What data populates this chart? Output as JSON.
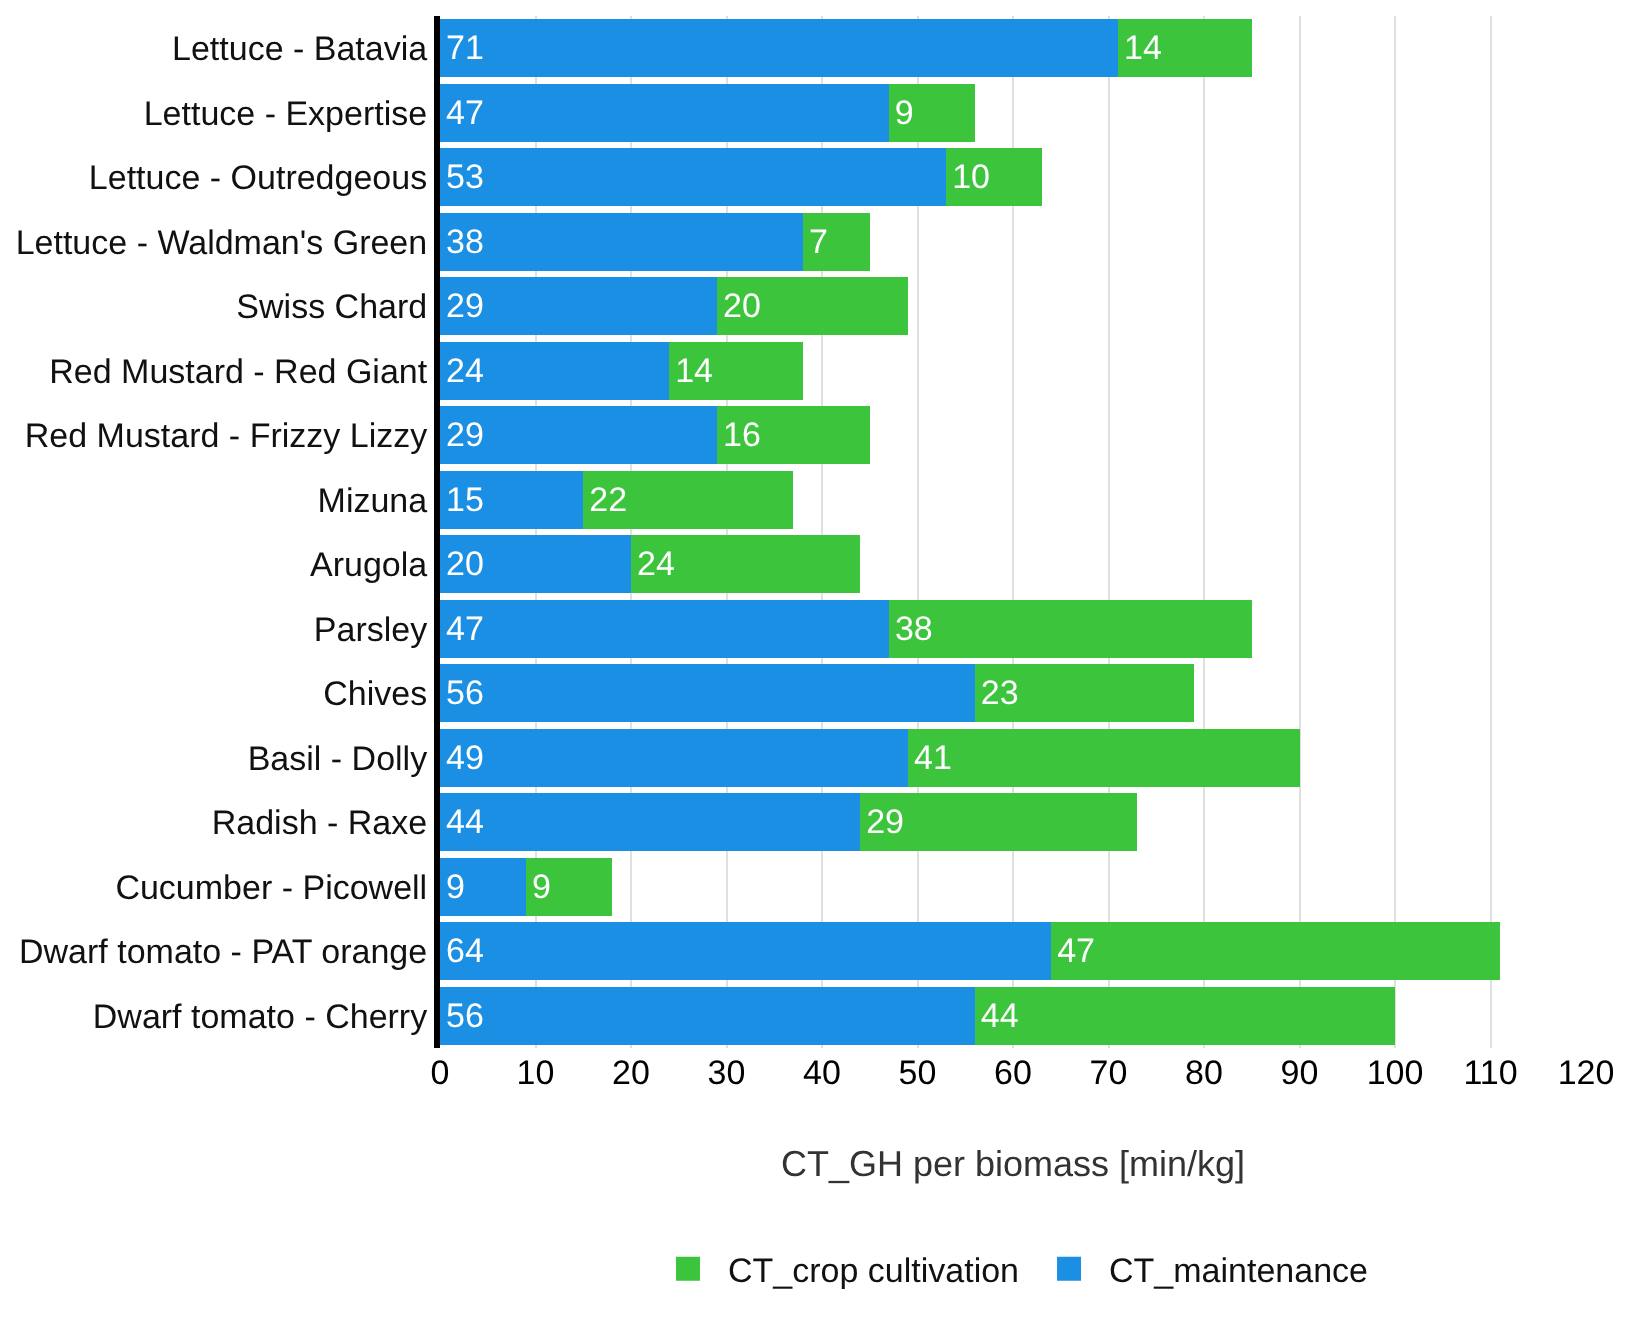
{
  "chart_data": {
    "type": "bar",
    "orientation": "horizontal",
    "stacked": true,
    "xlabel": "CT_GH per biomass [min/kg]",
    "categories": [
      "Lettuce - Batavia",
      "Lettuce - Expertise",
      "Lettuce - Outredgeous",
      "Lettuce - Waldman's Green",
      "Swiss Chard",
      "Red Mustard - Red Giant",
      "Red Mustard - Frizzy Lizzy",
      "Mizuna",
      "Arugola",
      "Parsley",
      "Chives",
      "Basil - Dolly",
      "Radish - Raxe",
      "Cucumber - Picowell",
      "Dwarf tomato - PAT orange",
      "Dwarf tomato - Cherry"
    ],
    "series": [
      {
        "name": "CT_maintenance",
        "color": "#1a8fe3",
        "values": [
          71,
          47,
          53,
          38,
          29,
          24,
          29,
          15,
          20,
          47,
          56,
          49,
          44,
          9,
          64,
          56
        ]
      },
      {
        "name": "CT_crop cultivation",
        "color": "#3dc43d",
        "values": [
          14,
          9,
          10,
          7,
          20,
          14,
          16,
          22,
          24,
          38,
          23,
          41,
          29,
          9,
          47,
          44
        ]
      }
    ],
    "xlim": [
      0,
      120
    ],
    "xticks": [
      0,
      10,
      20,
      30,
      40,
      50,
      60,
      70,
      80,
      90,
      100,
      110,
      120
    ],
    "data_labels": true,
    "grid": "x",
    "legend": "bottom"
  }
}
